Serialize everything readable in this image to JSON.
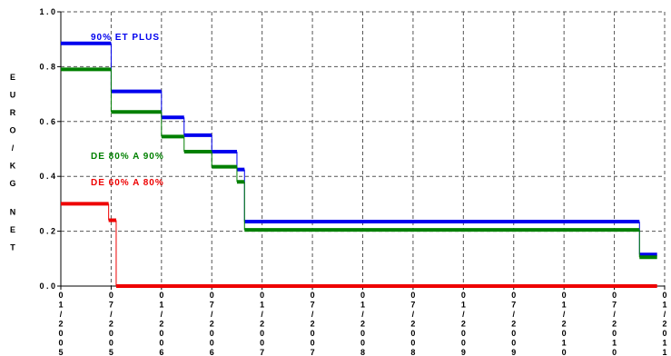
{
  "chart_data": {
    "type": "line",
    "step": true,
    "title": "",
    "ylabel": "EURO/KG NET",
    "xlabel": "",
    "ylim": [
      0,
      1.0
    ],
    "y_ticks": [
      {
        "value": 0.0,
        "label": "0 . 0"
      },
      {
        "value": 0.2,
        "label": "0 . 2"
      },
      {
        "value": 0.4,
        "label": "0 . 4"
      },
      {
        "value": 0.6,
        "label": "0 . 6"
      },
      {
        "value": 0.8,
        "label": "0 . 8"
      },
      {
        "value": 1.0,
        "label": "1 . 0"
      }
    ],
    "x_ticks": [
      "01/2005",
      "07/2005",
      "01/2006",
      "07/2006",
      "01/2007",
      "07/2007",
      "01/2008",
      "07/2008",
      "01/2009",
      "07/2009",
      "01/2010",
      "07/2010",
      "01/2011"
    ],
    "grid": true,
    "series": [
      {
        "name": "90% ET PLUS",
        "color": "#0000ee",
        "steps": [
          {
            "x0": 0.0,
            "x1": 1.0,
            "y": 0.885
          },
          {
            "x0": 1.0,
            "x1": 2.0,
            "y": 0.71
          },
          {
            "x0": 2.0,
            "x1": 2.45,
            "y": 0.615
          },
          {
            "x0": 2.45,
            "x1": 3.0,
            "y": 0.55
          },
          {
            "x0": 3.0,
            "x1": 3.5,
            "y": 0.49
          },
          {
            "x0": 3.5,
            "x1": 3.65,
            "y": 0.425
          },
          {
            "x0": 3.65,
            "x1": 11.5,
            "y": 0.235
          },
          {
            "x0": 11.5,
            "x1": 11.85,
            "y": 0.115
          }
        ]
      },
      {
        "name": "DE 80% A 90%",
        "color": "#008000",
        "steps": [
          {
            "x0": 0.0,
            "x1": 1.0,
            "y": 0.79
          },
          {
            "x0": 1.0,
            "x1": 2.0,
            "y": 0.635
          },
          {
            "x0": 2.0,
            "x1": 2.45,
            "y": 0.545
          },
          {
            "x0": 2.45,
            "x1": 3.0,
            "y": 0.49
          },
          {
            "x0": 3.0,
            "x1": 3.5,
            "y": 0.435
          },
          {
            "x0": 3.5,
            "x1": 3.65,
            "y": 0.38
          },
          {
            "x0": 3.65,
            "x1": 11.5,
            "y": 0.205
          },
          {
            "x0": 11.5,
            "x1": 11.85,
            "y": 0.105
          }
        ]
      },
      {
        "name": "DE 60% A 80%",
        "color": "#ee0000",
        "steps": [
          {
            "x0": 0.0,
            "x1": 0.95,
            "y": 0.3
          },
          {
            "x0": 0.95,
            "x1": 1.1,
            "y": 0.24
          },
          {
            "x0": 1.1,
            "x1": 11.85,
            "y": 0.0
          }
        ]
      }
    ]
  }
}
